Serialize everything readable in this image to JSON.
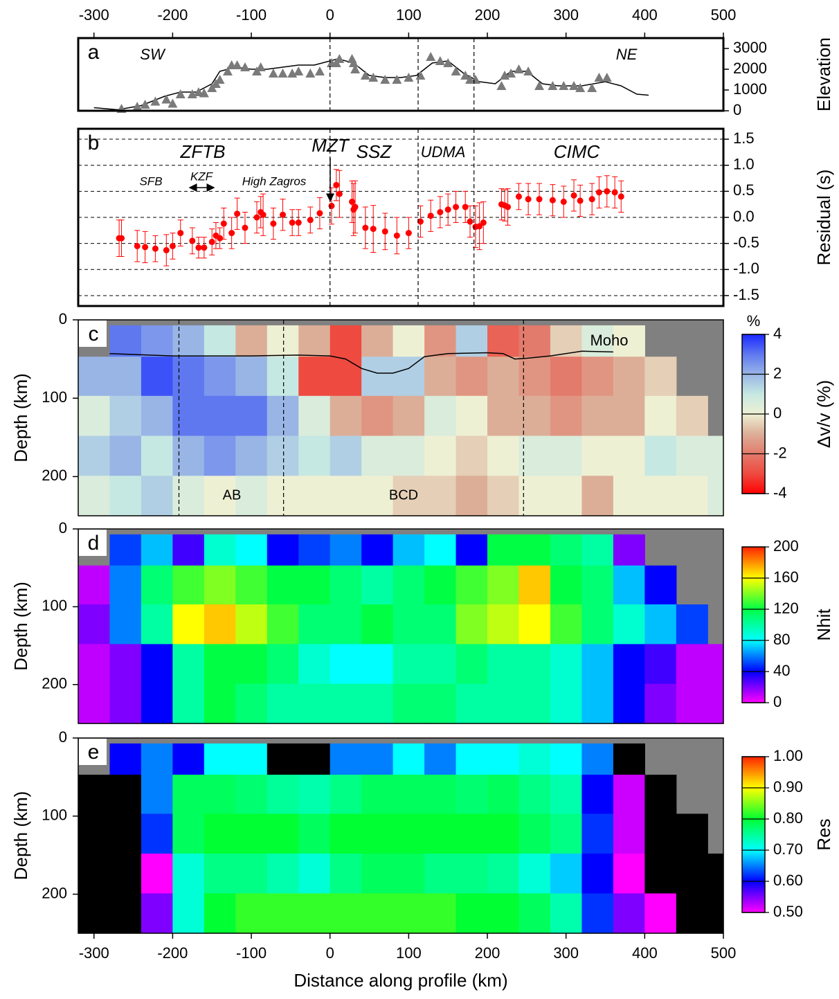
{
  "chart_data": [
    {
      "type": "line",
      "label": "a",
      "ylabel": "Elevation",
      "annotations": [
        "SW",
        "NE"
      ],
      "xlim": [
        -320,
        500
      ],
      "xticks": [
        -300,
        -200,
        -100,
        0,
        100,
        200,
        300,
        400,
        500
      ],
      "ylim": [
        0,
        3500
      ],
      "yticks": [
        0,
        1000,
        2000,
        3000
      ],
      "boundaries": [
        0,
        112,
        183
      ],
      "series": [
        {
          "style": "line",
          "color": "#000000",
          "x": [
            -300,
            -270,
            -240,
            -210,
            -190,
            -170,
            -150,
            -140,
            -130,
            -120,
            -100,
            -80,
            -60,
            -40,
            -20,
            0,
            10,
            30,
            50,
            70,
            90,
            110,
            130,
            150,
            170,
            190,
            210,
            230,
            250,
            270,
            290,
            320,
            350,
            370,
            390,
            405
          ],
          "values": [
            150,
            50,
            250,
            700,
            900,
            900,
            1300,
            1900,
            2000,
            2100,
            2000,
            2000,
            2100,
            2200,
            2200,
            2400,
            2500,
            2300,
            1700,
            1600,
            1600,
            1700,
            2300,
            2400,
            1800,
            1400,
            1300,
            1900,
            1900,
            1300,
            1200,
            1200,
            1400,
            1200,
            800,
            750
          ]
        },
        {
          "style": "triangle",
          "color": "#7a7a7a",
          "x": [
            -265,
            -245,
            -235,
            -222,
            -208,
            -200,
            -190,
            -175,
            -167,
            -160,
            -150,
            -145,
            -140,
            -130,
            -125,
            -118,
            -108,
            -93,
            -88,
            -72,
            -60,
            -48,
            -40,
            -25,
            -13,
            2,
            8,
            12,
            28,
            30,
            32,
            45,
            55,
            70,
            85,
            100,
            115,
            128,
            140,
            150,
            160,
            172,
            178,
            185,
            218,
            222,
            230,
            240,
            252,
            266,
            283,
            297,
            310,
            318,
            333,
            342,
            352
          ],
          "values": [
            100,
            200,
            300,
            450,
            550,
            350,
            800,
            800,
            900,
            850,
            1100,
            1300,
            1500,
            1900,
            2200,
            2200,
            2100,
            1900,
            2100,
            1800,
            1800,
            1800,
            1900,
            1800,
            1900,
            2300,
            2300,
            2500,
            2500,
            2300,
            2000,
            1700,
            1600,
            1500,
            1500,
            1600,
            1700,
            2600,
            2400,
            2300,
            1900,
            1700,
            1500,
            1500,
            1200,
            1700,
            1800,
            2000,
            1900,
            1200,
            1200,
            1200,
            1200,
            1100,
            1100,
            1600,
            1600
          ]
        }
      ]
    },
    {
      "type": "errorbar",
      "label": "b",
      "ylabel": "Residual (s)",
      "annotations": [
        "ZFTB",
        "MZT",
        "SSZ",
        "UDMA",
        "CIMC",
        "SFB",
        "KZF",
        "High Zagros"
      ],
      "xlim": [
        -320,
        500
      ],
      "ylim": [
        -1.7,
        1.7
      ],
      "yticks": [
        1.5,
        {
          "value": 1,
          "label": "1.0"
        },
        0.5,
        {
          "value": 0,
          "label": "0.0"
        },
        -0.5,
        {
          "value": -1,
          "label": "-1.0"
        },
        -1.5
      ],
      "grid": true,
      "boundaries": [
        0,
        112,
        183
      ],
      "color": "#ff0000",
      "x": [
        -268,
        -265,
        -245,
        -235,
        -222,
        -208,
        -200,
        -190,
        -175,
        -167,
        -160,
        -150,
        -145,
        -140,
        -135,
        -125,
        -118,
        -108,
        -93,
        -88,
        -85,
        -72,
        -60,
        -48,
        -40,
        -25,
        -13,
        2,
        8,
        12,
        28,
        30,
        32,
        45,
        55,
        70,
        85,
        100,
        115,
        128,
        140,
        150,
        160,
        172,
        178,
        185,
        190,
        195,
        218,
        222,
        226,
        240,
        252,
        266,
        283,
        297,
        310,
        318,
        333,
        342,
        352,
        362,
        370
      ],
      "values": [
        -0.4,
        -0.4,
        -0.55,
        -0.57,
        -0.6,
        -0.63,
        -0.55,
        -0.3,
        -0.45,
        -0.58,
        -0.58,
        -0.47,
        -0.35,
        -0.4,
        -0.12,
        -0.3,
        0.07,
        -0.2,
        0,
        0.1,
        0.05,
        -0.12,
        0.05,
        -0.1,
        -0.1,
        -0.05,
        0.08,
        0.22,
        0.62,
        0.45,
        0.3,
        0.15,
        0.2,
        -0.2,
        -0.22,
        -0.27,
        -0.35,
        -0.3,
        -0.08,
        0.03,
        0.1,
        0.15,
        0.2,
        0.2,
        -0.08,
        -0.18,
        -0.17,
        -0.1,
        0.25,
        0.23,
        0.2,
        0.4,
        0.35,
        0.35,
        0.33,
        0.3,
        0.42,
        0.32,
        0.35,
        0.48,
        0.5,
        0.48,
        0.4
      ],
      "errors": [
        0.35,
        0.35,
        0.3,
        0.3,
        0.25,
        0.3,
        0.25,
        0.25,
        0.25,
        0.2,
        0.2,
        0.25,
        0.25,
        0.2,
        0.3,
        0.3,
        0.3,
        0.3,
        0.3,
        0.3,
        0.4,
        0.3,
        0.3,
        0.25,
        0.25,
        0.25,
        0.3,
        0.35,
        0.3,
        0.45,
        0.4,
        0.5,
        0.5,
        0.4,
        0.45,
        0.35,
        0.35,
        0.3,
        0.3,
        0.3,
        0.3,
        0.3,
        0.3,
        0.3,
        0.3,
        0.4,
        0.45,
        0.4,
        0.3,
        0.3,
        0.35,
        0.25,
        0.3,
        0.3,
        0.3,
        0.3,
        0.3,
        0.3,
        0.3,
        0.3,
        0.3,
        0.3,
        0.3
      ]
    },
    {
      "type": "heatmap",
      "label": "c",
      "ylabel": "Depth (km)",
      "annotations": [
        "AB",
        "BCD"
      ],
      "xlim": [
        -320,
        500
      ],
      "ylim": [
        250,
        0
      ],
      "yticks": [
        0,
        100,
        200
      ],
      "nan_color": "#808080",
      "bins": [
        -320,
        -280,
        -240,
        -200,
        -160,
        -120,
        -80,
        -40,
        0,
        40,
        80,
        120,
        160,
        200,
        240,
        280,
        320,
        360,
        400,
        440,
        480,
        500
      ],
      "depth_bins": [
        7,
        47,
        97,
        148,
        199,
        250
      ],
      "layers": [
        [
          null,
          3,
          2.5,
          2,
          1,
          -1,
          0,
          -1,
          -3,
          -1,
          0,
          -1.5,
          1.5,
          -2.5,
          -2,
          -0.5,
          0.5,
          0,
          null,
          null,
          null
        ],
        [
          2,
          2,
          3.5,
          3,
          2.5,
          2,
          1,
          -3,
          -3,
          1.5,
          1.5,
          -1,
          -1.5,
          -1,
          -1.5,
          -2,
          -1.5,
          -1,
          -0.5,
          null,
          null
        ],
        [
          0.5,
          1.5,
          2,
          3,
          3,
          3,
          2,
          0.5,
          -1,
          -1.5,
          -1,
          0.5,
          0,
          -1,
          -1,
          -1.5,
          -1,
          -1,
          0,
          -0.5,
          null
        ],
        [
          1.5,
          2,
          1,
          2,
          2.5,
          2,
          1.5,
          1,
          1.5,
          0.5,
          0.5,
          0,
          -0.5,
          0,
          0.5,
          0.5,
          0,
          0,
          1,
          0.5,
          0.5
        ],
        [
          0.5,
          1,
          1.5,
          0.5,
          0,
          0.5,
          0,
          0,
          0,
          0,
          -0.5,
          -0.5,
          -1,
          -0.5,
          0,
          0,
          -1,
          0,
          0,
          0,
          0.5
        ]
      ],
      "boundaries": [
        -192,
        -59,
        246
      ],
      "moho": {
        "name": "Moho",
        "color": "#000000",
        "x": [
          -280,
          -200,
          -100,
          -40,
          0,
          20,
          40,
          60,
          80,
          100,
          120,
          150,
          200,
          220,
          235,
          250,
          280,
          320,
          360
        ],
        "values": [
          43,
          46,
          46,
          45,
          46,
          50,
          62,
          68,
          68,
          62,
          47,
          43,
          42,
          43,
          50,
          49,
          46,
          40,
          41
        ]
      },
      "colorbar": {
        "title": "%",
        "label": "Δv/v (%)",
        "lim": [
          -4,
          4
        ],
        "ticks": [
          4,
          2,
          0,
          -2,
          -4
        ],
        "colors": [
          "#ff0000",
          "#ee4a40",
          "#e37b6c",
          "#dcae98",
          "#eef0d4",
          "#c6e8e2",
          "#99b5e6",
          "#5f78f0",
          "#1a2aff"
        ]
      }
    },
    {
      "type": "heatmap",
      "label": "d",
      "ylabel": "Depth (km)",
      "xlim": [
        -320,
        500
      ],
      "ylim": [
        250,
        0
      ],
      "yticks": [
        0,
        100,
        200
      ],
      "nan_color": "#808080",
      "bins": [
        -320,
        -280,
        -240,
        -200,
        -160,
        -120,
        -80,
        -40,
        0,
        40,
        80,
        120,
        160,
        200,
        240,
        280,
        320,
        360,
        400,
        440,
        480,
        500
      ],
      "depth_bins": [
        7,
        47,
        97,
        148,
        199,
        250
      ],
      "layers": [
        [
          null,
          50,
          70,
          30,
          90,
          80,
          40,
          50,
          60,
          40,
          70,
          80,
          40,
          120,
          120,
          110,
          100,
          20,
          null,
          null,
          null
        ],
        [
          10,
          60,
          110,
          130,
          140,
          130,
          120,
          120,
          110,
          100,
          110,
          120,
          130,
          140,
          170,
          120,
          110,
          70,
          40,
          null,
          null
        ],
        [
          20,
          60,
          100,
          160,
          170,
          150,
          130,
          110,
          110,
          120,
          110,
          110,
          140,
          150,
          160,
          130,
          110,
          90,
          70,
          50,
          null
        ],
        [
          10,
          20,
          40,
          100,
          120,
          120,
          110,
          90,
          80,
          80,
          100,
          100,
          110,
          100,
          100,
          90,
          70,
          40,
          30,
          10,
          10
        ],
        [
          10,
          20,
          40,
          100,
          120,
          110,
          100,
          100,
          100,
          100,
          110,
          110,
          100,
          100,
          100,
          90,
          70,
          40,
          20,
          10,
          10
        ]
      ],
      "colorbar": {
        "label": "Nhit",
        "lim": [
          0,
          200
        ],
        "ticks": [
          0,
          40,
          80,
          120,
          160,
          200
        ],
        "colors": [
          "#ff00ff",
          "#0000ff",
          "#00ffff",
          "#00ff44",
          "#ffff00",
          "#ff2200"
        ]
      }
    },
    {
      "type": "heatmap",
      "label": "e",
      "ylabel": "Depth (km)",
      "xlabel": "Distance along profile (km)",
      "xlim": [
        -320,
        500
      ],
      "xticks": [
        -300,
        -200,
        -100,
        0,
        100,
        200,
        300,
        400,
        500
      ],
      "ylim": [
        250,
        0
      ],
      "yticks": [
        0,
        100,
        200
      ],
      "nan_color": "#808080",
      "bins": [
        -320,
        -280,
        -240,
        -200,
        -160,
        -120,
        -80,
        -40,
        0,
        40,
        80,
        120,
        160,
        200,
        240,
        280,
        320,
        360,
        400,
        440,
        480,
        500
      ],
      "depth_bins": [
        7,
        47,
        97,
        148,
        199,
        250
      ],
      "layers": [
        [
          null,
          0.6,
          0.65,
          0.6,
          0.7,
          0.7,
          0,
          0,
          0.65,
          0.65,
          0.7,
          0.65,
          0.7,
          0.7,
          0.72,
          0.7,
          0.65,
          0,
          null,
          null,
          null
        ],
        [
          0,
          0,
          0.65,
          0.78,
          0.78,
          0.77,
          0.75,
          0.74,
          0.76,
          0.78,
          0.78,
          0.78,
          0.77,
          0.78,
          0.76,
          0.74,
          0.6,
          0.52,
          0,
          null,
          null
        ],
        [
          0,
          0,
          0.62,
          0.78,
          0.8,
          0.8,
          0.8,
          0.78,
          0.8,
          0.8,
          0.8,
          0.8,
          0.8,
          0.8,
          0.78,
          0.76,
          0.62,
          0.52,
          0,
          0,
          null
        ],
        [
          0,
          0,
          0.5,
          0.72,
          0.76,
          0.76,
          0.74,
          0.72,
          0.76,
          0.78,
          0.78,
          0.76,
          0.76,
          0.75,
          0.72,
          0.68,
          0.6,
          0.5,
          0,
          0,
          0
        ],
        [
          0,
          0,
          0.55,
          0.72,
          0.8,
          0.82,
          0.82,
          0.82,
          0.82,
          0.82,
          0.82,
          0.82,
          0.8,
          0.8,
          0.78,
          0.74,
          0.62,
          0.55,
          0.5,
          0,
          0
        ]
      ],
      "colorbar": {
        "label": "Res",
        "lim": [
          0.5,
          1
        ],
        "ticks": [
          {
            "value": 1,
            "label": "1.00"
          },
          {
            "value": 0.9,
            "label": "0.90"
          },
          {
            "value": 0.8,
            "label": "0.80"
          },
          {
            "value": 0.7,
            "label": "0.70"
          },
          {
            "value": 0.6,
            "label": "0.60"
          },
          {
            "value": 0.5,
            "label": "0.50"
          }
        ],
        "colors": [
          "#ff00ff",
          "#0000ff",
          "#00ffff",
          "#00ff33",
          "#ffff00",
          "#ff2200"
        ],
        "under_color": "#000000"
      }
    }
  ]
}
